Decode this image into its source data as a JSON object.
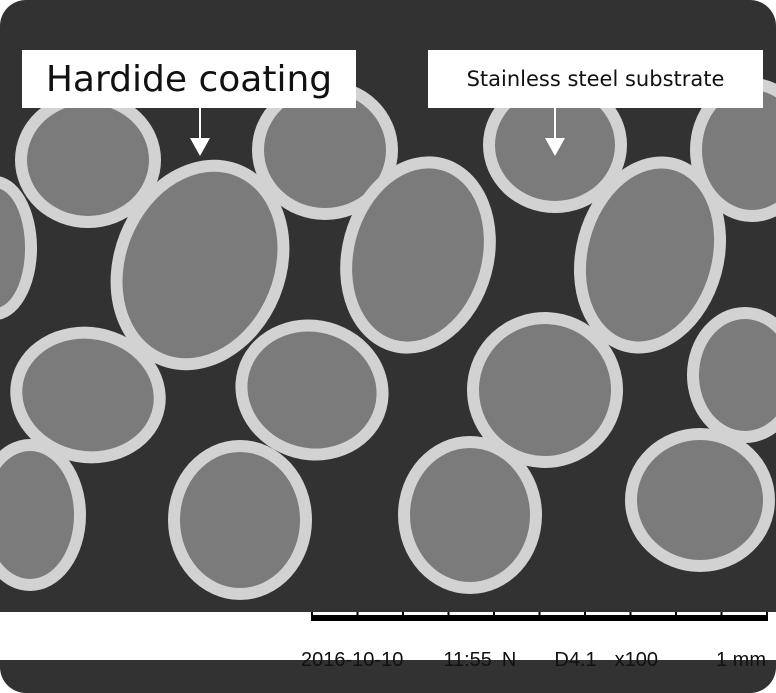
{
  "annotations": {
    "coating_label": "Hardide coating",
    "substrate_label": "Stainless steel substrate"
  },
  "info_bar": {
    "date": "2016-10-10",
    "time": "11:55",
    "mode": "N",
    "detector": "D4.1",
    "magnification": "x100",
    "scale": "1 mm"
  },
  "colors": {
    "background": "#323232",
    "coating": "#d2d2d2",
    "substrate": "#7b7b7b"
  }
}
